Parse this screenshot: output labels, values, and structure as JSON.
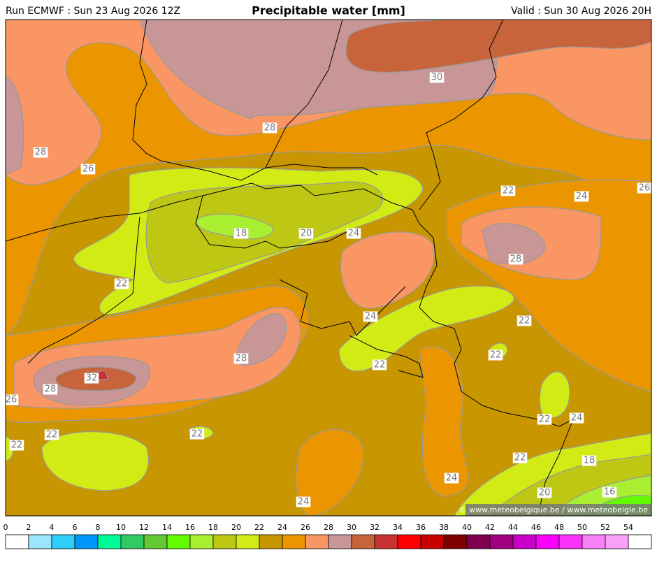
{
  "header": {
    "run": "Run ECMWF : Sun 23 Aug 2026 12Z",
    "title": "Precipitable water [mm]",
    "valid": "Valid : Sun 30 Aug 2026 20H"
  },
  "map": {
    "contour_labels": [
      30,
      28,
      28,
      26,
      22,
      24,
      26,
      18,
      20,
      24,
      28,
      22,
      24,
      22,
      22,
      28,
      22,
      32,
      28,
      26,
      22,
      24,
      22,
      22,
      22,
      22,
      18,
      24,
      20,
      16,
      24
    ]
  },
  "colorbar": {
    "ticks": [
      0,
      2,
      4,
      6,
      8,
      10,
      12,
      14,
      16,
      18,
      20,
      22,
      24,
      26,
      28,
      30,
      32,
      34,
      36,
      38,
      40,
      42,
      44,
      46,
      48,
      50,
      52,
      54
    ],
    "colors": [
      "#ffffff",
      "#9be6fa",
      "#2fcdfa",
      "#0096fa",
      "#00fa96",
      "#32c864",
      "#64c832",
      "#64fa00",
      "#aaf032",
      "#bec814",
      "#d2eb14",
      "#c89600",
      "#eb9600",
      "#fa9664",
      "#c89696",
      "#c8643c",
      "#c83232",
      "#fa0000",
      "#c80000",
      "#800000",
      "#800050",
      "#a00080",
      "#c800c8",
      "#fa00fa",
      "#fa32fa",
      "#fa80fa",
      "#faa0fa",
      "#ffffff"
    ]
  },
  "footer": {
    "copyright": "© www.meteobelgique.be / www.meteobelgie.be"
  }
}
